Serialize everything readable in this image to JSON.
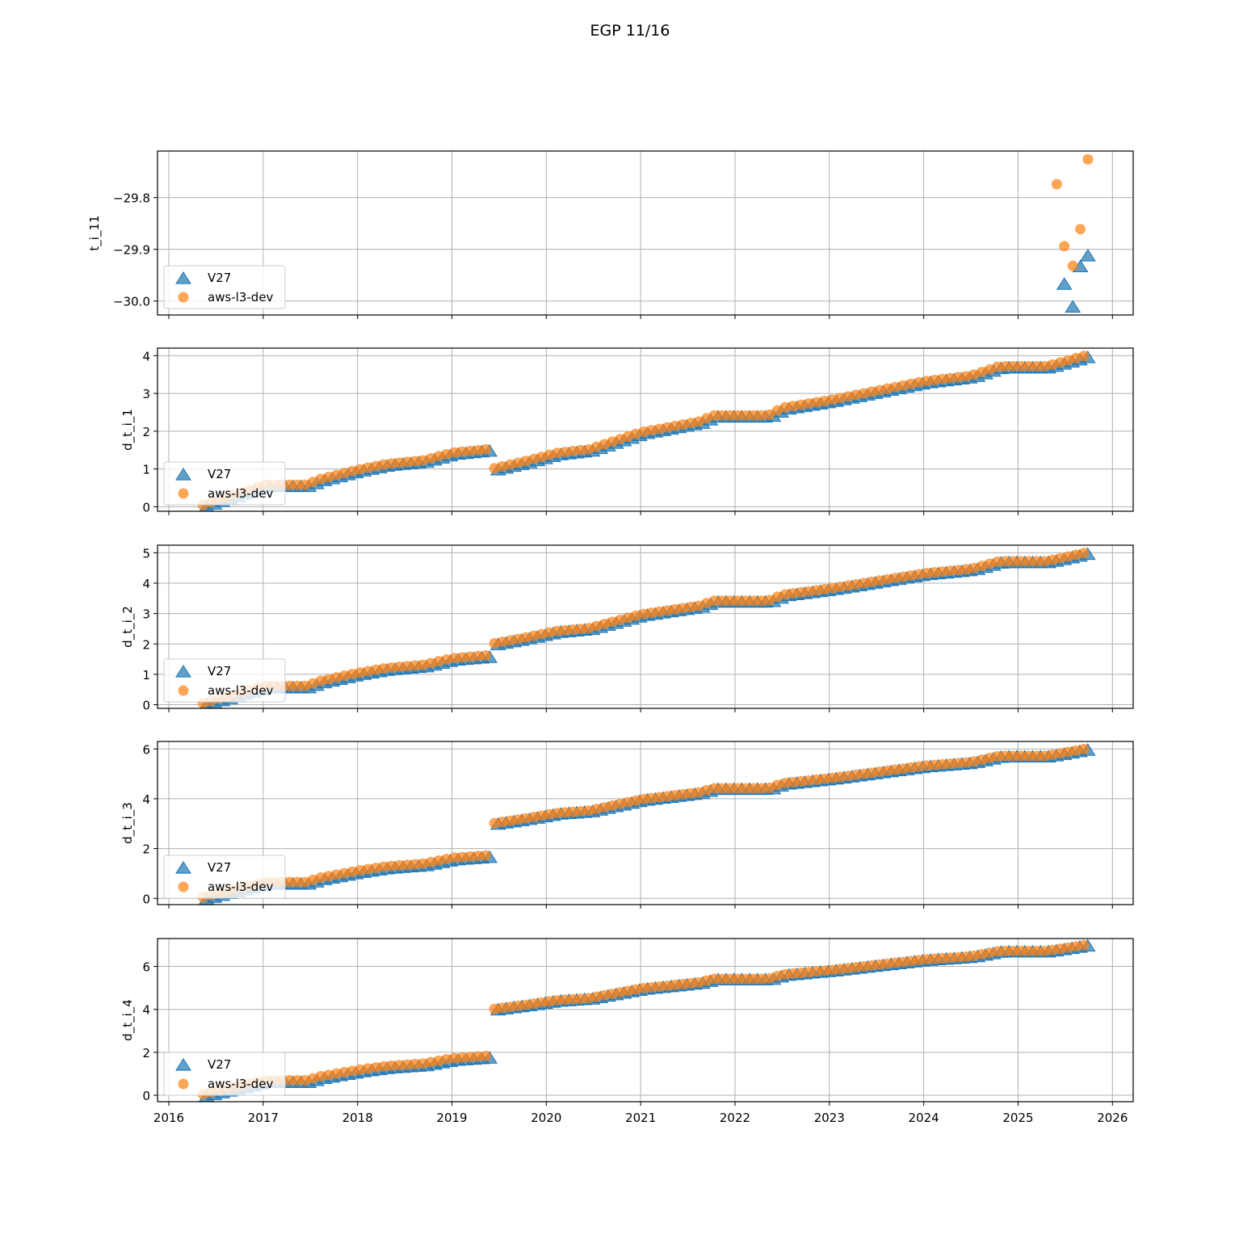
{
  "chart_data": {
    "type": "scatter",
    "title": "EGP 11/16",
    "shared_x": {
      "ticks": [
        "2016",
        "2017",
        "2018",
        "2019",
        "2020",
        "2021",
        "2022",
        "2023",
        "2024",
        "2025",
        "2026"
      ],
      "xlim": [
        2015.88,
        2026.22
      ]
    },
    "legend": {
      "placement": "lower-left",
      "entries": [
        "V27",
        "aws-l3-dev"
      ]
    },
    "colors": {
      "V27": "#1f77b4",
      "aws-l3-dev": "#ff7f0e"
    },
    "grid": true,
    "panels": [
      {
        "ylabel": "t_i_11",
        "ylim": [
          -30.027,
          -29.71
        ],
        "yticks": [
          -29.8,
          -29.9,
          -30.0
        ],
        "ytick_labels": [
          "−29.8",
          "−29.9",
          "−30.0"
        ],
        "series": [
          {
            "name": "V27",
            "marker": "triangle",
            "x": [
              2025.49,
              2025.58,
              2025.66,
              2025.74
            ],
            "y": [
              -29.968,
              -30.012,
              -29.934,
              -29.913
            ]
          },
          {
            "name": "aws-l3-dev",
            "marker": "circle",
            "x": [
              2025.41,
              2025.49,
              2025.58,
              2025.66,
              2025.74
            ],
            "y": [
              -29.774,
              -29.894,
              -29.932,
              -29.861,
              -29.726
            ]
          }
        ]
      },
      {
        "ylabel": "d_t_i_1",
        "ylim": [
          -0.12,
          4.2
        ],
        "yticks": [
          0,
          1,
          2,
          3,
          4
        ],
        "ytick_labels": [
          "0",
          "1",
          "2",
          "3",
          "4"
        ],
        "offset": 1
      },
      {
        "ylabel": "d_t_i_2",
        "ylim": [
          -0.12,
          5.25
        ],
        "yticks": [
          0,
          1,
          2,
          3,
          4,
          5
        ],
        "ytick_labels": [
          "0",
          "1",
          "2",
          "3",
          "4",
          "5"
        ],
        "offset": 2
      },
      {
        "ylabel": "d_t_i_3",
        "ylim": [
          -0.25,
          6.3
        ],
        "yticks": [
          0,
          2,
          4,
          6
        ],
        "ytick_labels": [
          "0",
          "2",
          "4",
          "6"
        ],
        "offset": 3
      },
      {
        "ylabel": "d_t_i_4",
        "ylim": [
          -0.3,
          7.3
        ],
        "yticks": [
          0,
          2,
          4,
          6
        ],
        "ytick_labels": [
          "0",
          "2",
          "4",
          "6"
        ],
        "offset": 4
      }
    ],
    "trend_model": {
      "note_offset_panels": "each d_t_i panel: value = (x<2019.45 ? 0.5*cum : offset + (cum-1.5)*... ) approximated by segments below",
      "segment1": {
        "x0": 2016.36,
        "x1": 2019.41,
        "points_start": [
          2016.36,
          0.02
        ],
        "points": [
          [
            2016.36,
            0.02
          ],
          [
            2016.9,
            0.45
          ],
          [
            2017.0,
            0.55
          ],
          [
            2017.45,
            0.55
          ],
          [
            2017.6,
            0.7
          ],
          [
            2018.0,
            0.95
          ],
          [
            2018.3,
            1.1
          ],
          [
            2018.7,
            1.2
          ],
          [
            2019.0,
            1.4
          ],
          [
            2019.41,
            1.5
          ]
        ]
      },
      "segment2": {
        "points": [
          [
            2019.45,
            1.0
          ],
          [
            2019.8,
            1.2
          ],
          [
            2020.1,
            1.4
          ],
          [
            2020.45,
            1.5
          ],
          [
            2021.0,
            1.95
          ],
          [
            2021.65,
            2.25
          ],
          [
            2021.75,
            2.4
          ],
          [
            2022.35,
            2.4
          ],
          [
            2022.5,
            2.6
          ],
          [
            2023.0,
            2.8
          ],
          [
            2023.5,
            3.05
          ],
          [
            2024.0,
            3.3
          ],
          [
            2024.5,
            3.45
          ],
          [
            2024.8,
            3.7
          ],
          [
            2025.3,
            3.7
          ],
          [
            2025.74,
            4.0
          ]
        ]
      }
    }
  }
}
